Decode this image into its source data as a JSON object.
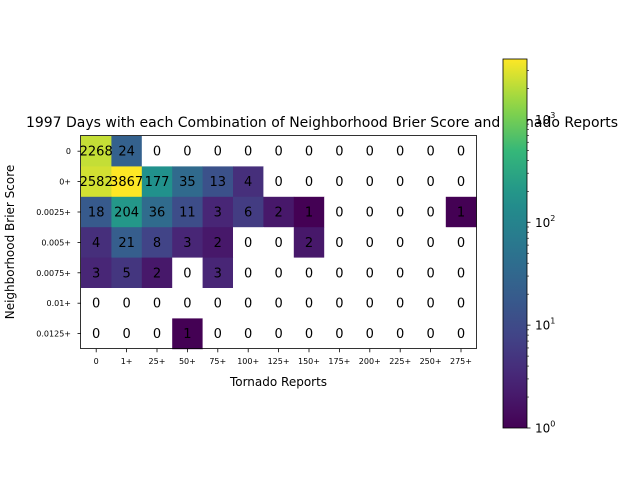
{
  "chart_data": {
    "type": "heatmap",
    "title": "1997 Days with each Combination of Neighborhood Brier Score and Tornado Reports",
    "xlabel": "Tornado Reports",
    "ylabel": "Neighborhood Brier Score",
    "x_categories": [
      "0",
      "1+",
      "25+",
      "50+",
      "75+",
      "100+",
      "125+",
      "150+",
      "175+",
      "200+",
      "225+",
      "250+",
      "275+"
    ],
    "y_categories": [
      "0",
      "0+",
      "0.0025+",
      "0.005+",
      "0.0075+",
      "0.01+",
      "0.0125+"
    ],
    "values": [
      [
        2268,
        24,
        0,
        0,
        0,
        0,
        0,
        0,
        0,
        0,
        0,
        0,
        0
      ],
      [
        2582,
        3867,
        177,
        35,
        13,
        4,
        0,
        0,
        0,
        0,
        0,
        0,
        0
      ],
      [
        18,
        204,
        36,
        11,
        3,
        6,
        2,
        1,
        0,
        0,
        0,
        0,
        1
      ],
      [
        4,
        21,
        8,
        3,
        2,
        0,
        0,
        2,
        0,
        0,
        0,
        0,
        0
      ],
      [
        3,
        5,
        2,
        0,
        3,
        0,
        0,
        0,
        0,
        0,
        0,
        0,
        0
      ],
      [
        0,
        0,
        0,
        0,
        0,
        0,
        0,
        0,
        0,
        0,
        0,
        0,
        0
      ],
      [
        0,
        0,
        0,
        1,
        0,
        0,
        0,
        0,
        0,
        0,
        0,
        0,
        0
      ]
    ],
    "colorbar": {
      "scale": "log",
      "range": [
        1,
        3867
      ],
      "colormap": "viridis",
      "tick_labels": [
        "10^0",
        "10^1",
        "10^2",
        "10^3"
      ],
      "zero_color": "#ffffff"
    }
  }
}
